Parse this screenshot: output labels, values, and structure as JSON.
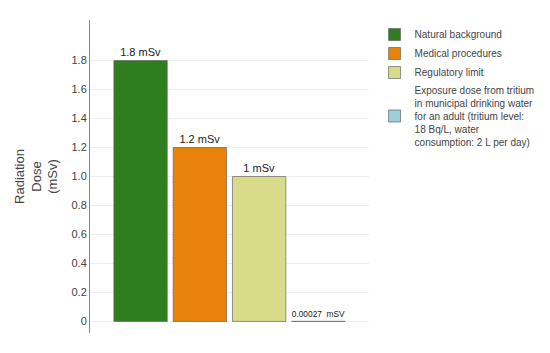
{
  "chart_data": {
    "type": "bar",
    "categories": [
      null
    ],
    "series": [
      {
        "name": "Natural background",
        "color": "#2e7d1e",
        "values": [
          1.8
        ],
        "value_labels": [
          "1.8 mSv"
        ]
      },
      {
        "name": "Medical procedures",
        "color": "#e8820a",
        "values": [
          1.2
        ],
        "value_labels": [
          "1.2 mSv"
        ]
      },
      {
        "name": "Regulatory limit",
        "color": "#d8dc8a",
        "values": [
          1.0
        ],
        "value_labels": [
          "1 mSv"
        ]
      },
      {
        "name": "Exposure dose from tritium\nin municipal drinking water\nfor an adult (tritium level:\n18 Bq/L, water\nconsumption: 2 L per day)",
        "color": "#9dcfda",
        "values": [
          0.00027
        ],
        "value_labels": [
          "0.00027  mSV"
        ]
      }
    ],
    "y_label": "Radiation\nDose\n(mSv)",
    "ylim": [
      -0.08,
      2.08
    ],
    "yticks": [
      0,
      0.2,
      0.4,
      0.6,
      0.8,
      {
        "value": 1.0,
        "label": "1.0"
      },
      1.2,
      1.4,
      1.6,
      1.8
    ],
    "grid": true,
    "legend": "right",
    "data_labels": true,
    "tick_labels": "y"
  }
}
